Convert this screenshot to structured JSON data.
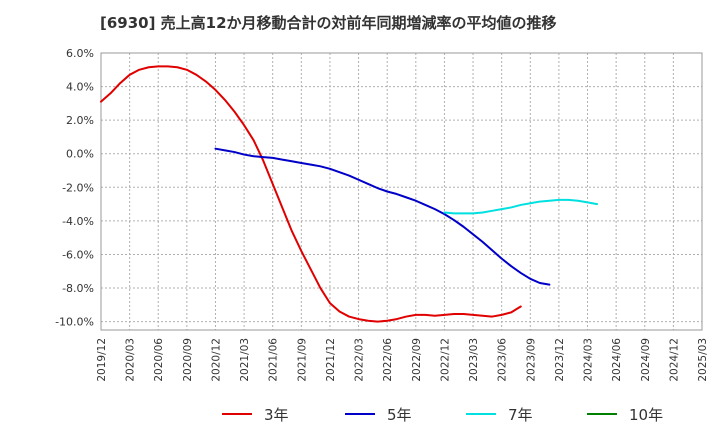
{
  "chart_data": {
    "type": "line",
    "title": "[6930]  売上高12か月移動合計の対前年同期増減率の平均値の推移",
    "xlabel": "",
    "ylabel": "",
    "ylim": [
      -10.5,
      6.0
    ],
    "y_ticks": [
      6.0,
      4.0,
      2.0,
      0.0,
      -2.0,
      -4.0,
      -6.0,
      -8.0,
      -10.0
    ],
    "y_tick_labels": [
      "6.0%",
      "4.0%",
      "2.0%",
      "0.0%",
      "-2.0%",
      "-4.0%",
      "-6.0%",
      "-8.0%",
      "-10.0%"
    ],
    "x_tick_labels": [
      "2019/12",
      "2020/03",
      "2020/06",
      "2020/09",
      "2020/12",
      "2021/03",
      "2021/06",
      "2021/09",
      "2021/12",
      "2022/03",
      "2022/06",
      "2022/09",
      "2022/12",
      "2023/03",
      "2023/06",
      "2023/09",
      "2023/12",
      "2024/03",
      "2024/06",
      "2024/09",
      "2024/12",
      "2025/03"
    ],
    "grid": true,
    "legend_position": "bottom",
    "series": [
      {
        "name": "3年",
        "color": "#e00000",
        "start_index": 0,
        "values": [
          3.1,
          3.6,
          4.2,
          4.7,
          5.0,
          5.15,
          5.2,
          5.2,
          5.15,
          5.0,
          4.7,
          4.3,
          3.8,
          3.2,
          2.5,
          1.7,
          0.8,
          -0.4,
          -1.8,
          -3.2,
          -4.6,
          -5.8,
          -6.9,
          -8.0,
          -8.9,
          -9.4,
          -9.7,
          -9.85,
          -9.95,
          -10.0,
          -9.95,
          -9.85,
          -9.7,
          -9.6,
          -9.6,
          -9.65,
          -9.6,
          -9.55,
          -9.55,
          -9.6,
          -9.65,
          -9.7,
          -9.6,
          -9.45,
          -9.1
        ]
      },
      {
        "name": "5年",
        "color": "#0000c8",
        "start_index": 12,
        "values": [
          0.3,
          0.2,
          0.1,
          -0.05,
          -0.15,
          -0.2,
          -0.25,
          -0.35,
          -0.45,
          -0.55,
          -0.65,
          -0.75,
          -0.9,
          -1.1,
          -1.3,
          -1.55,
          -1.8,
          -2.05,
          -2.25,
          -2.4,
          -2.6,
          -2.8,
          -3.05,
          -3.3,
          -3.6,
          -3.95,
          -4.35,
          -4.8,
          -5.25,
          -5.75,
          -6.25,
          -6.7,
          -7.1,
          -7.45,
          -7.7,
          -7.8
        ]
      },
      {
        "name": "7年",
        "color": "#00e0e0",
        "start_index": 36,
        "values": [
          -3.5,
          -3.55,
          -3.55,
          -3.55,
          -3.5,
          -3.4,
          -3.3,
          -3.2,
          -3.05,
          -2.95,
          -2.85,
          -2.8,
          -2.75,
          -2.75,
          -2.8,
          -2.9,
          -3.0
        ]
      },
      {
        "name": "10年",
        "color": "#008000",
        "start_index": 0,
        "values": []
      }
    ]
  }
}
